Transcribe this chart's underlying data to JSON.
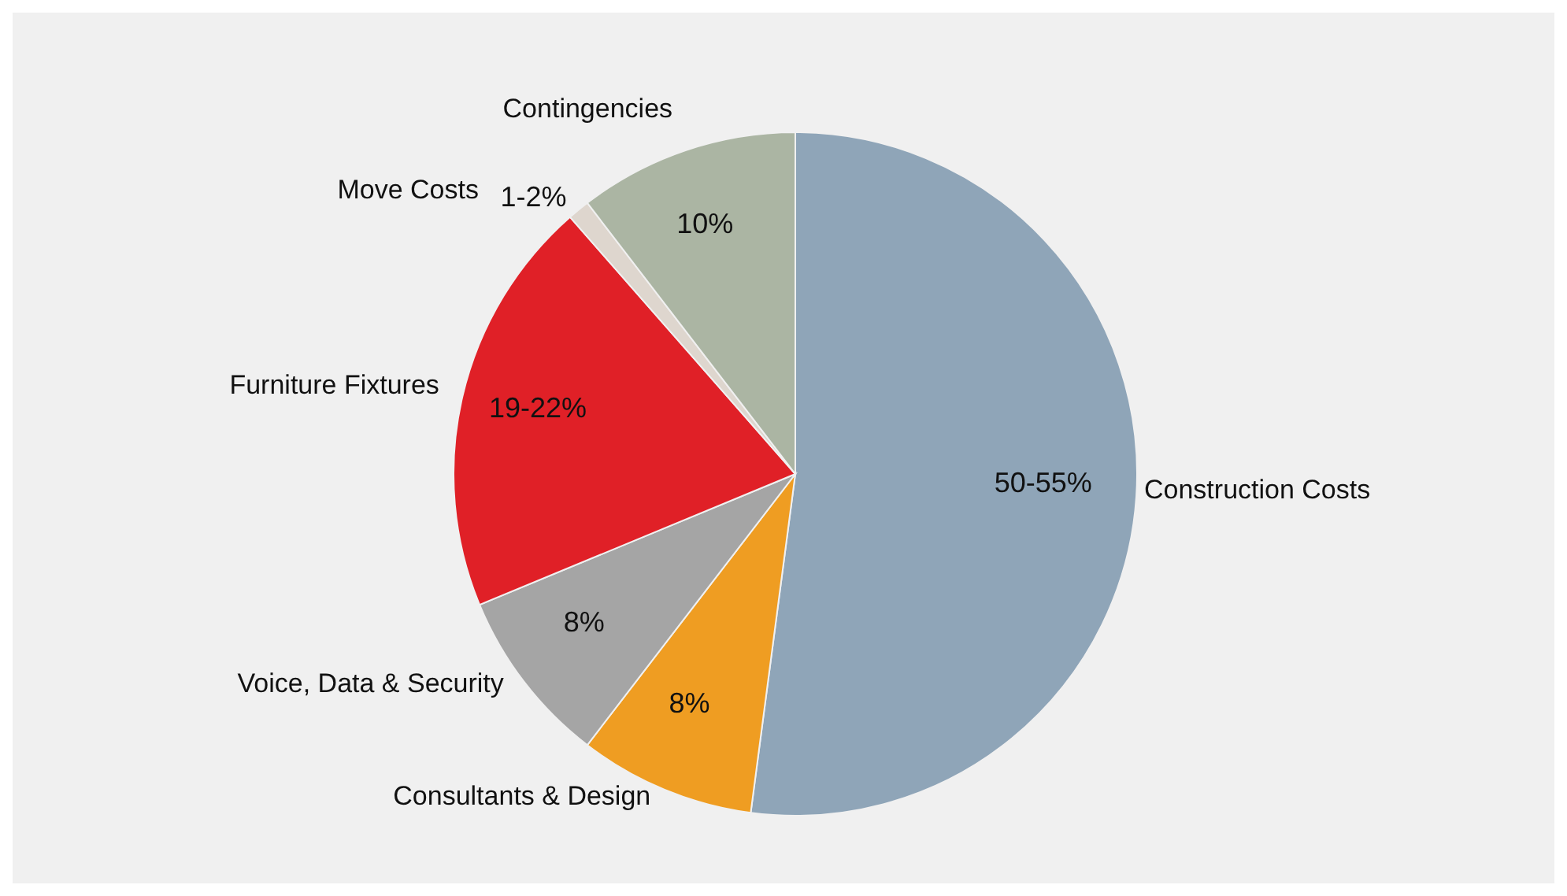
{
  "chart_data": {
    "type": "pie",
    "categories": [
      "Construction Costs",
      "Consultants & Design",
      "Voice, Data & Security",
      "Furniture Fixtures",
      "Move Costs",
      "Contingencies"
    ],
    "values": [
      50,
      8,
      8,
      19,
      1,
      10
    ],
    "value_labels": [
      "50-55%",
      "8%",
      "8%",
      "19-22%",
      "1-2%",
      "10%"
    ],
    "colors": [
      "#8fa5b8",
      "#ef9d22",
      "#a5a5a5",
      "#e02027",
      "#ded6ce",
      "#abb5a3"
    ],
    "legend": false
  }
}
